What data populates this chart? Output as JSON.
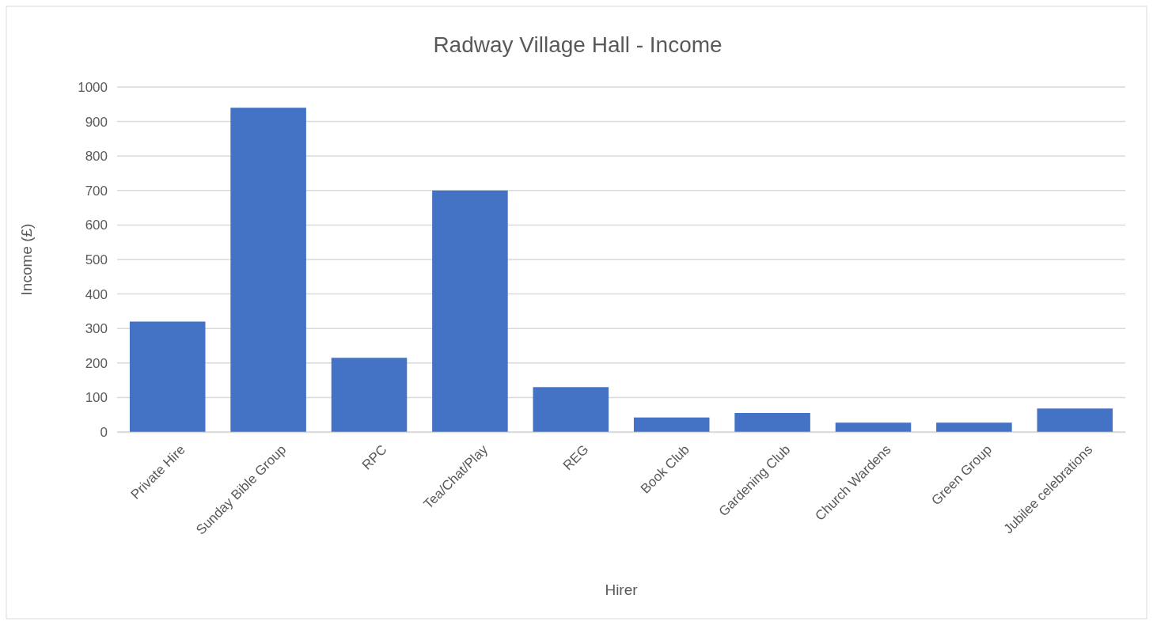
{
  "chart_data": {
    "type": "bar",
    "title": "Radway Village Hall - Income",
    "xlabel": "Hirer",
    "ylabel": "Income (£)",
    "categories": [
      "Private Hire",
      "Sunday Bible Group",
      "RPC",
      "Tea/Chat/Play",
      "REG",
      "Book Club",
      "Gardening Club",
      "Church Wardens",
      "Green Group",
      "Jubilee celebrations"
    ],
    "values": [
      320,
      940,
      215,
      700,
      130,
      42,
      55,
      27,
      27,
      68
    ],
    "color": "#4472c4",
    "ylim": [
      0,
      1000
    ],
    "yticks": [
      0,
      100,
      200,
      300,
      400,
      500,
      600,
      700,
      800,
      900,
      1000
    ],
    "grid": "y"
  }
}
